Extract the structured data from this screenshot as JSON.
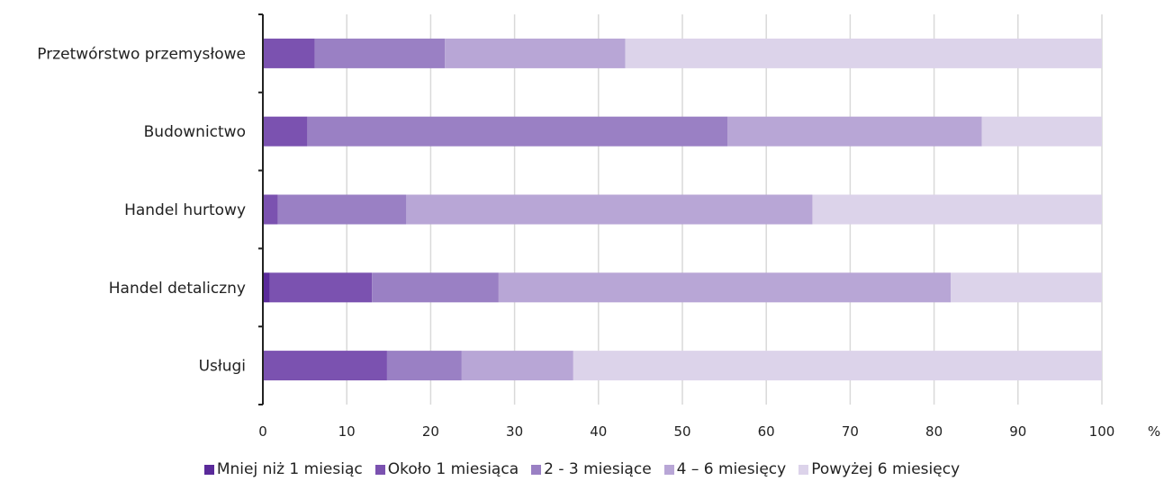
{
  "chart_data": {
    "type": "bar",
    "orientation": "horizontal",
    "stacked": true,
    "categories": [
      "Przetwórstwo przemysłowe",
      "Budownictwo",
      "Handel hurtowy",
      "Handel detaliczny",
      "Usługi"
    ],
    "series": [
      {
        "name": "Mniej niż 1 miesiąc",
        "color": "#5a2a9a",
        "values": [
          0,
          0,
          0,
          0.8,
          0
        ]
      },
      {
        "name": "Około 1 miesiąca",
        "color": "#7b52b0",
        "values": [
          6.2,
          5.3,
          1.8,
          12.2,
          14.8
        ]
      },
      {
        "name": "2 - 3 miesiące",
        "color": "#9a80c4",
        "values": [
          15.5,
          50.1,
          15.3,
          15.1,
          8.9
        ]
      },
      {
        "name": "4 – 6 miesięcy",
        "color": "#b8a6d6",
        "values": [
          21.5,
          30.3,
          48.4,
          53.9,
          13.3
        ]
      },
      {
        "name": "Powyżej 6 miesięcy",
        "color": "#dcd3ea",
        "values": [
          56.8,
          14.3,
          34.5,
          18.0,
          63.0
        ]
      }
    ],
    "x_ticks": [
      "0",
      "10",
      "20",
      "30",
      "40",
      "50",
      "60",
      "70",
      "80",
      "90",
      "100"
    ],
    "xlim": [
      0,
      100
    ],
    "unit_label": "%",
    "grid": true,
    "legend_position": "bottom"
  }
}
